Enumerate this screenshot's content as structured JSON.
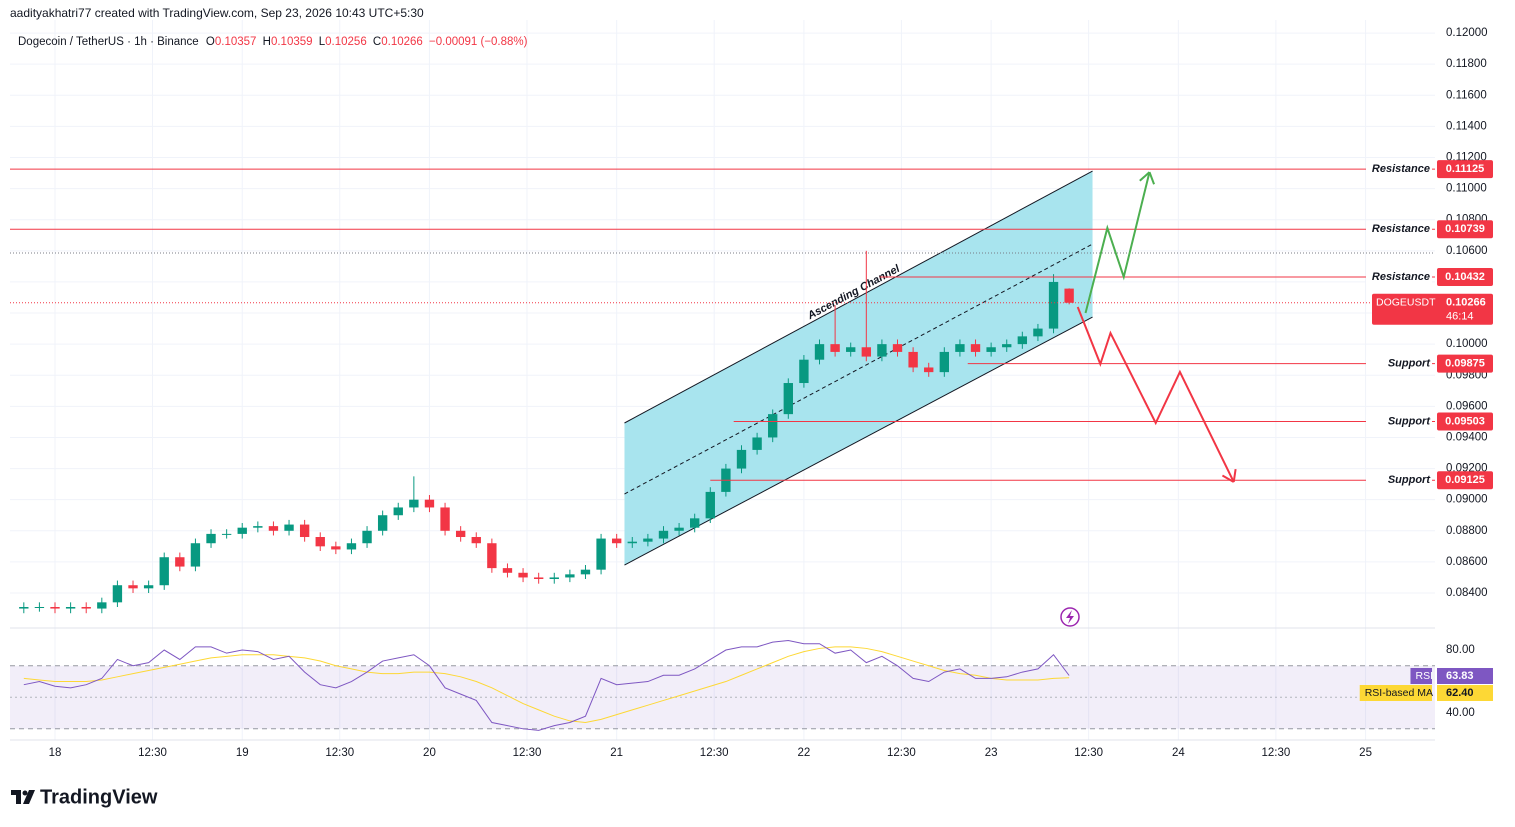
{
  "header": {
    "credit": "aadityakhatri77 created with TradingView.com, Sep 23, 2026 10:43 UTC+5:30",
    "symbol": "Dogecoin / TetherUS · 1h · Binance",
    "ohlc": [
      {
        "label": "O",
        "value": "0.10357"
      },
      {
        "label": "H",
        "value": "0.10359"
      },
      {
        "label": "L",
        "value": "0.10256"
      },
      {
        "label": "C",
        "value": "0.10266"
      }
    ],
    "change": "−0.00091 (−0.88%)"
  },
  "branding": "TradingView",
  "chart_data": [
    {
      "type": "candlestick",
      "symbol_label": "DOGEUSDT",
      "countdown": "46:14",
      "up_color": "#089981",
      "down_color": "#f23645",
      "grid": true,
      "x": [
        -4,
        -2,
        0,
        2,
        4,
        6,
        8,
        10,
        12,
        14,
        16,
        18,
        20,
        22,
        24,
        26,
        28,
        30,
        32,
        34,
        36,
        38,
        40,
        42,
        44,
        46,
        48,
        50,
        52,
        54,
        56,
        58,
        60,
        62,
        64,
        66,
        68,
        70,
        72,
        74,
        76,
        78,
        80,
        82,
        84,
        86,
        88,
        90,
        92,
        94,
        96,
        98,
        100,
        102,
        104,
        106,
        108,
        110,
        112,
        114,
        116,
        118,
        120,
        122,
        124,
        126,
        128,
        130
      ],
      "open": [
        0.083,
        0.0831,
        0.0831,
        0.083,
        0.0831,
        0.083,
        0.0834,
        0.0845,
        0.0843,
        0.0845,
        0.0863,
        0.0857,
        0.0872,
        0.0878,
        0.0878,
        0.0882,
        0.0883,
        0.088,
        0.0884,
        0.0876,
        0.087,
        0.0868,
        0.0872,
        0.088,
        0.089,
        0.0895,
        0.09,
        0.0895,
        0.088,
        0.0876,
        0.0872,
        0.0856,
        0.0853,
        0.085,
        0.0849,
        0.085,
        0.0852,
        0.0855,
        0.0875,
        0.0872,
        0.0873,
        0.0875,
        0.088,
        0.0882,
        0.0888,
        0.0905,
        0.092,
        0.0932,
        0.094,
        0.0955,
        0.0975,
        0.099,
        0.1,
        0.0995,
        0.0998,
        0.0992,
        0.1,
        0.0995,
        0.0985,
        0.0982,
        0.0995,
        0.1,
        0.0995,
        0.0998,
        0.1,
        0.1005,
        0.101,
        0.10357
      ],
      "high": [
        0.0834,
        0.0834,
        0.0834,
        0.0834,
        0.0834,
        0.0837,
        0.0848,
        0.0848,
        0.0848,
        0.0866,
        0.0866,
        0.0875,
        0.0881,
        0.0881,
        0.0885,
        0.0886,
        0.0886,
        0.0887,
        0.0887,
        0.0879,
        0.0873,
        0.0875,
        0.0883,
        0.0893,
        0.0898,
        0.0915,
        0.0903,
        0.0898,
        0.0883,
        0.0879,
        0.0875,
        0.0859,
        0.0856,
        0.0853,
        0.0853,
        0.0855,
        0.0858,
        0.0878,
        0.0878,
        0.0876,
        0.0878,
        0.0883,
        0.0885,
        0.0891,
        0.0908,
        0.0923,
        0.0935,
        0.0943,
        0.0958,
        0.0978,
        0.0993,
        0.1003,
        0.1025,
        0.1001,
        0.106,
        0.1003,
        0.1003,
        0.0998,
        0.0988,
        0.0998,
        0.1003,
        0.1003,
        0.1001,
        0.1003,
        0.1008,
        0.1013,
        0.1045,
        0.10359
      ],
      "low": [
        0.0827,
        0.0828,
        0.0827,
        0.0827,
        0.0827,
        0.0827,
        0.0831,
        0.084,
        0.084,
        0.0842,
        0.0854,
        0.0854,
        0.0869,
        0.0875,
        0.0875,
        0.0879,
        0.0877,
        0.0877,
        0.0873,
        0.0867,
        0.0865,
        0.0865,
        0.0869,
        0.0877,
        0.0887,
        0.0892,
        0.0892,
        0.0877,
        0.0873,
        0.0869,
        0.0853,
        0.085,
        0.0847,
        0.0846,
        0.0846,
        0.0847,
        0.0849,
        0.0852,
        0.0869,
        0.0869,
        0.087,
        0.0872,
        0.0877,
        0.0879,
        0.0885,
        0.0902,
        0.0917,
        0.0929,
        0.0937,
        0.0952,
        0.0972,
        0.0987,
        0.0992,
        0.0992,
        0.0989,
        0.0989,
        0.0992,
        0.0982,
        0.0979,
        0.0979,
        0.0992,
        0.0992,
        0.0992,
        0.0995,
        0.0997,
        0.1002,
        0.1007,
        0.10256
      ],
      "close": [
        0.0831,
        0.0831,
        0.083,
        0.0831,
        0.083,
        0.0834,
        0.0845,
        0.0843,
        0.0845,
        0.0863,
        0.0857,
        0.0872,
        0.0878,
        0.0878,
        0.0882,
        0.0883,
        0.088,
        0.0884,
        0.0876,
        0.087,
        0.0868,
        0.0872,
        0.088,
        0.089,
        0.0895,
        0.09,
        0.0895,
        0.088,
        0.0876,
        0.0872,
        0.0856,
        0.0853,
        0.085,
        0.0849,
        0.085,
        0.0852,
        0.0855,
        0.0875,
        0.0872,
        0.0873,
        0.0875,
        0.088,
        0.0882,
        0.0888,
        0.0905,
        0.092,
        0.0932,
        0.094,
        0.0955,
        0.0975,
        0.099,
        0.1,
        0.0995,
        0.0998,
        0.0992,
        0.1,
        0.0995,
        0.0985,
        0.0982,
        0.0995,
        0.1,
        0.0995,
        0.0998,
        0.1,
        0.1005,
        0.101,
        0.104,
        0.10266
      ],
      "xlim": [
        -5.77,
        176.9
      ],
      "xticks": [
        {
          "value": 0,
          "label": "18"
        },
        {
          "value": 12.5,
          "label": "12:30"
        },
        {
          "value": 24,
          "label": "19"
        },
        {
          "value": 36.5,
          "label": "12:30"
        },
        {
          "value": 48,
          "label": "20"
        },
        {
          "value": 60.5,
          "label": "12:30"
        },
        {
          "value": 72,
          "label": "21"
        },
        {
          "value": 84.5,
          "label": "12:30"
        },
        {
          "value": 96,
          "label": "22"
        },
        {
          "value": 108.5,
          "label": "12:30"
        },
        {
          "value": 120,
          "label": "23"
        },
        {
          "value": 132.5,
          "label": "12:30"
        },
        {
          "value": 144,
          "label": "24"
        },
        {
          "value": 156.5,
          "label": "12:30"
        },
        {
          "value": 168,
          "label": "25"
        }
      ],
      "ylim": [
        0.08175,
        0.12084
      ],
      "yticks": [
        {
          "value": 0.084,
          "label": "0.08400"
        },
        {
          "value": 0.086,
          "label": "0.08600"
        },
        {
          "value": 0.088,
          "label": "0.08800"
        },
        {
          "value": 0.09,
          "label": "0.09000"
        },
        {
          "value": 0.092,
          "label": "0.09200"
        },
        {
          "value": 0.094,
          "label": "0.09400"
        },
        {
          "value": 0.096,
          "label": "0.09600"
        },
        {
          "value": 0.098,
          "label": "0.09800"
        },
        {
          "value": 0.1,
          "label": "0.10000"
        },
        {
          "value": 0.102,
          "label": "0.10200"
        },
        {
          "value": 0.104,
          "label": "0.10400"
        },
        {
          "value": 0.106,
          "label": "0.10600"
        },
        {
          "value": 0.108,
          "label": "0.10800"
        },
        {
          "value": 0.11,
          "label": "0.11000"
        },
        {
          "value": 0.112,
          "label": "0.11200"
        },
        {
          "value": 0.114,
          "label": "0.11400"
        },
        {
          "value": 0.116,
          "label": "0.11600"
        },
        {
          "value": 0.118,
          "label": "0.11800"
        },
        {
          "value": 0.12,
          "label": "0.12000"
        }
      ],
      "levels": [
        {
          "name": "Resistance",
          "value": 0.11125
        },
        {
          "name": "Resistance",
          "value": 0.10739
        },
        {
          "name": "Resistance",
          "value": 0.10432,
          "from": 105.7
        },
        {
          "name": "Support",
          "value": 0.09875,
          "from": 117
        },
        {
          "name": "Support",
          "value": 0.09503,
          "from": 87
        },
        {
          "name": "Support",
          "value": 0.09125,
          "from": 84
        }
      ],
      "level_color": "#f23645",
      "dotted_levels": [
        0.10586
      ],
      "channel": {
        "label": "Ascending Channel",
        "color": "#a8e4ee",
        "x": [
          73,
          133
        ],
        "upper": [
          0.09493,
          0.11113
        ],
        "lower": [
          0.0858,
          0.10174
        ]
      },
      "projections": [
        {
          "color": "#4caf50",
          "x": [
            132.1,
            134.9,
            137,
            140.3
          ],
          "values": [
            0.102,
            0.10747,
            0.10432,
            0.11106
          ]
        },
        {
          "color": "#f23645",
          "x": [
            131.1,
            134,
            135.3,
            141.1,
            144.2,
            151.1
          ],
          "values": [
            0.10239,
            0.09872,
            0.10071,
            0.09493,
            0.09821,
            0.09114
          ]
        }
      ]
    },
    {
      "type": "line",
      "band": [
        30,
        70
      ],
      "midline": 50,
      "band_color": "#7e57c2",
      "x": [
        -4,
        -2,
        0,
        2,
        4,
        6,
        8,
        10,
        12,
        14,
        16,
        18,
        20,
        22,
        24,
        26,
        28,
        30,
        32,
        34,
        36,
        38,
        40,
        42,
        44,
        46,
        48,
        50,
        52,
        54,
        56,
        58,
        60,
        62,
        64,
        66,
        68,
        70,
        72,
        74,
        76,
        78,
        80,
        82,
        84,
        86,
        88,
        90,
        92,
        94,
        96,
        98,
        100,
        102,
        104,
        106,
        108,
        110,
        112,
        114,
        116,
        118,
        120,
        122,
        124,
        126,
        128,
        130
      ],
      "ylim": [
        22.9,
        93.97
      ],
      "yticks": [
        {
          "value": 80,
          "label": "80.00"
        },
        {
          "value": 40,
          "label": "40.00"
        }
      ],
      "series": [
        {
          "name": "RSI",
          "color": "#7e57c2",
          "values": [
            58,
            60,
            57,
            56,
            58,
            62,
            74,
            70,
            72,
            80,
            74,
            82,
            82,
            78,
            80,
            79,
            74,
            76,
            66,
            58,
            56,
            60,
            66,
            73,
            75,
            77,
            70,
            56,
            52,
            48,
            34,
            32,
            30,
            29,
            32,
            34,
            38,
            62,
            58,
            59,
            60,
            64,
            64,
            68,
            74,
            80,
            82,
            82,
            85,
            86,
            84,
            84,
            78,
            80,
            72,
            76,
            70,
            62,
            60,
            66,
            68,
            62,
            62,
            63,
            66,
            68,
            77,
            63.83
          ]
        },
        {
          "name": "RSI-based MA",
          "color": "#fdd835",
          "values": [
            62,
            61,
            60,
            60,
            60,
            61,
            63,
            65,
            67,
            69,
            71,
            73,
            75,
            76,
            77,
            77,
            77,
            76,
            75,
            73,
            70,
            68,
            66,
            65,
            65,
            66,
            66,
            65,
            63,
            60,
            56,
            51,
            46,
            42,
            38,
            35,
            34,
            36,
            39,
            42,
            45,
            48,
            51,
            54,
            57,
            60,
            64,
            68,
            72,
            76,
            79,
            81,
            82,
            82,
            81,
            79,
            76,
            73,
            70,
            67,
            65,
            64,
            62,
            61,
            61,
            61,
            62,
            62.4
          ],
          "value_labels": [
            null,
            null,
            null,
            null,
            null,
            null,
            null,
            null,
            null,
            null,
            null,
            null,
            null,
            null,
            null,
            null,
            null,
            null,
            null,
            null,
            null,
            null,
            null,
            null,
            null,
            null,
            null,
            null,
            null,
            null,
            null,
            null,
            null,
            null,
            null,
            null,
            null,
            null,
            null,
            null,
            null,
            null,
            null,
            null,
            null,
            null,
            null,
            null,
            null,
            null,
            null,
            null,
            null,
            null,
            null,
            null,
            null,
            null,
            null,
            null,
            null,
            null,
            null,
            null,
            null,
            null,
            null,
            "62.40"
          ]
        }
      ]
    }
  ]
}
